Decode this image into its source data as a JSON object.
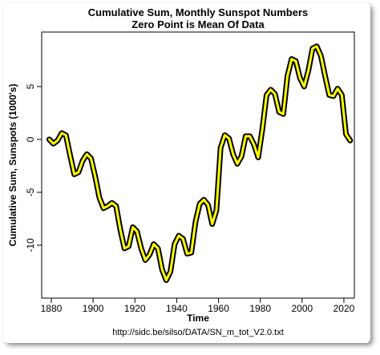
{
  "chart_data": {
    "type": "line",
    "title": "Cumulative Sum, Monthly Sunspot Numbers",
    "subtitle": "Zero Point is Mean Of Data",
    "x_label": "Time",
    "y_label": "Cumulative Sum, Sunspots (1000's)",
    "caption": "http://sidc.be/silso/DATA/SN_m_tot_V2.0.txt",
    "x": [
      1879,
      1881,
      1883,
      1885,
      1887,
      1889,
      1891,
      1893,
      1895,
      1897,
      1899,
      1901,
      1903,
      1905,
      1907,
      1909,
      1911,
      1913,
      1915,
      1917,
      1919,
      1921,
      1923,
      1925,
      1927,
      1929,
      1931,
      1933,
      1935,
      1937,
      1939,
      1941,
      1943,
      1945,
      1947,
      1949,
      1951,
      1953,
      1955,
      1957,
      1959,
      1961,
      1963,
      1965,
      1967,
      1969,
      1971,
      1973,
      1975,
      1977,
      1979,
      1981,
      1983,
      1985,
      1987,
      1989,
      1991,
      1993,
      1995,
      1997,
      1999,
      2001,
      2003,
      2005,
      2007,
      2009,
      2011,
      2013,
      2015,
      2017,
      2019,
      2021,
      2023
    ],
    "series": [
      {
        "name": "Cumulative Sum",
        "color": "#ffff00",
        "outline_color": "#000000",
        "values": [
          0,
          -0.4,
          -0.1,
          0.6,
          0.4,
          -1.5,
          -3.3,
          -3.1,
          -2,
          -1.4,
          -1.8,
          -3.5,
          -5.5,
          -6.5,
          -6.3,
          -6,
          -6.3,
          -8.5,
          -10.3,
          -10.1,
          -8.3,
          -8.7,
          -10.3,
          -11.4,
          -10.9,
          -9.9,
          -10.3,
          -12.3,
          -13.3,
          -12.5,
          -9.9,
          -9.1,
          -9.4,
          -10.8,
          -10.7,
          -7.8,
          -6.1,
          -5.7,
          -6.2,
          -8,
          -6.7,
          -0.8,
          0.4,
          0.1,
          -1.4,
          -2.3,
          -1.6,
          0.3,
          0.3,
          -0.5,
          -1.7,
          1,
          4.2,
          4.7,
          4.3,
          2.6,
          2.4,
          6,
          7.6,
          7.4,
          5.8,
          5,
          6.5,
          8.6,
          8.8,
          7.9,
          6,
          4.2,
          4.1,
          4.8,
          4.2,
          0.5,
          -0.1
        ]
      }
    ],
    "xlim": [
      1875.4,
      2025
    ],
    "ylim": [
      -15,
      10.15
    ],
    "xticks": [
      1880,
      1900,
      1920,
      1940,
      1960,
      1980,
      2000,
      2020
    ],
    "yticks": [
      -10,
      -5,
      0,
      5
    ]
  }
}
